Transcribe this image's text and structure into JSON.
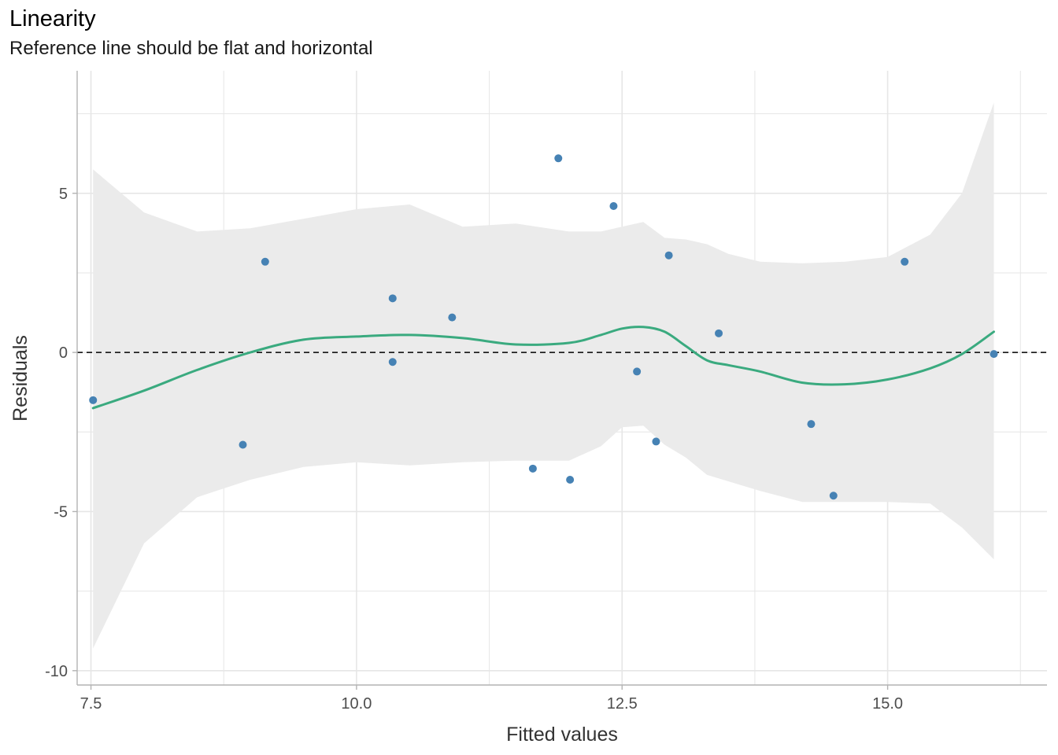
{
  "chart_data": {
    "type": "scatter",
    "title": "Linearity",
    "subtitle": "Reference line should be flat and horizontal",
    "xlabel": "Fitted values",
    "ylabel": "Residuals",
    "xlim": [
      7.37,
      16.5
    ],
    "ylim": [
      -10.45,
      8.85
    ],
    "x_ticks": [
      7.5,
      10.0,
      12.5,
      15.0
    ],
    "x_tick_labels": [
      "7.5",
      "10.0",
      "12.5",
      "15.0"
    ],
    "y_ticks": [
      -10,
      -5,
      0,
      5
    ],
    "y_tick_labels": [
      "-10",
      "-5",
      "0",
      "5"
    ],
    "grid": true,
    "reference_line_y": 0,
    "colors": {
      "points": "#4682b4",
      "smooth_line": "#3aaa7f",
      "confidence_band": "#ebebeb",
      "grid": "#e6e6e6",
      "reference_line": "#000000"
    },
    "points": {
      "x": [
        7.52,
        8.93,
        9.14,
        10.34,
        10.34,
        10.9,
        11.66,
        11.9,
        12.01,
        12.42,
        12.64,
        12.82,
        12.94,
        13.41,
        14.28,
        14.49,
        15.16,
        16.0
      ],
      "y": [
        -1.5,
        -2.9,
        2.85,
        1.7,
        -0.3,
        1.1,
        -3.65,
        6.1,
        -4.0,
        4.6,
        -0.6,
        -2.8,
        3.05,
        0.6,
        -2.25,
        -4.5,
        2.85,
        -0.05
      ]
    },
    "smooth": {
      "x": [
        7.52,
        8.0,
        8.5,
        9.0,
        9.5,
        10.0,
        10.5,
        11.0,
        11.5,
        12.0,
        12.3,
        12.5,
        12.7,
        12.9,
        13.1,
        13.3,
        13.5,
        13.8,
        14.2,
        14.6,
        15.0,
        15.4,
        15.7,
        16.0
      ],
      "y": [
        -1.75,
        -1.2,
        -0.55,
        0.0,
        0.4,
        0.5,
        0.55,
        0.45,
        0.25,
        0.3,
        0.55,
        0.75,
        0.8,
        0.65,
        0.2,
        -0.25,
        -0.4,
        -0.6,
        -0.95,
        -1.0,
        -0.85,
        -0.5,
        -0.05,
        0.65
      ]
    },
    "band_upper": [
      5.75,
      4.4,
      3.8,
      3.9,
      4.2,
      4.5,
      4.65,
      3.95,
      4.05,
      3.8,
      3.8,
      3.95,
      4.1,
      3.6,
      3.55,
      3.4,
      3.1,
      2.85,
      2.8,
      2.85,
      3.0,
      3.7,
      5.0,
      7.85
    ],
    "band_lower": [
      -9.3,
      -6.0,
      -4.55,
      -4.0,
      -3.6,
      -3.45,
      -3.55,
      -3.45,
      -3.4,
      -3.4,
      -2.95,
      -2.35,
      -2.3,
      -2.9,
      -3.3,
      -3.85,
      -4.05,
      -4.35,
      -4.7,
      -4.7,
      -4.7,
      -4.75,
      -5.5,
      -6.5
    ]
  }
}
